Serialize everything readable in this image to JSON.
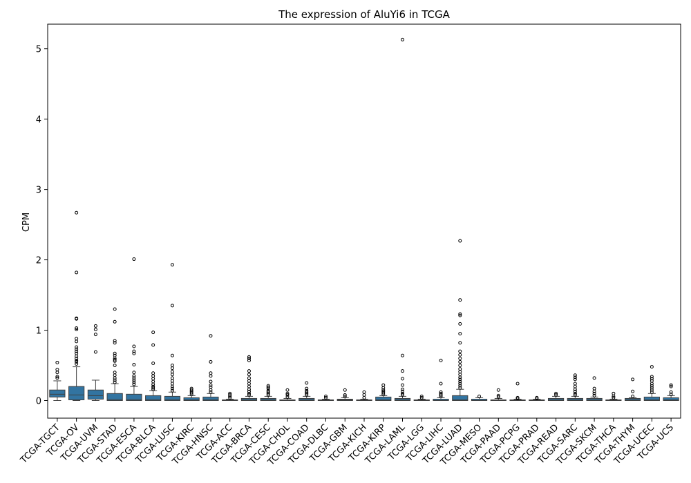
{
  "chart_data": {
    "type": "box",
    "title": "The expression of AluYi6 in TCGA",
    "xlabel": "",
    "ylabel": "CPM",
    "ylim": [
      -0.25,
      5.35
    ],
    "yticks": [
      0,
      1,
      2,
      3,
      4,
      5
    ],
    "box_color": "#3274a1",
    "categories": [
      "TCGA-TGCT",
      "TCGA-OV",
      "TCGA-UVM",
      "TCGA-STAD",
      "TCGA-ESCA",
      "TCGA-BLCA",
      "TCGA-LUSC",
      "TCGA-KIRC",
      "TCGA-HNSC",
      "TCGA-ACC",
      "TCGA-BRCA",
      "TCGA-CESC",
      "TCGA-CHOL",
      "TCGA-COAD",
      "TCGA-DLBC",
      "TCGA-GBM",
      "TCGA-KICH",
      "TCGA-KIRP",
      "TCGA-LAML",
      "TCGA-LGG",
      "TCGA-LIHC",
      "TCGA-LUAD",
      "TCGA-MESO",
      "TCGA-PAAD",
      "TCGA-PCPG",
      "TCGA-PRAD",
      "TCGA-READ",
      "TCGA-SARC",
      "TCGA-SKCM",
      "TCGA-THCA",
      "TCGA-THYM",
      "TCGA-UCEC",
      "TCGA-UCS"
    ],
    "boxes": [
      {
        "min": 0.0,
        "q1": 0.05,
        "median": 0.09,
        "q3": 0.15,
        "max": 0.28,
        "outliers": [
          0.32,
          0.34,
          0.4,
          0.44,
          0.54
        ]
      },
      {
        "min": 0.0,
        "q1": 0.01,
        "median": 0.08,
        "q3": 0.2,
        "max": 0.48,
        "outliers": [
          0.52,
          0.55,
          0.57,
          0.6,
          0.63,
          0.67,
          0.7,
          0.73,
          0.76,
          0.84,
          0.88,
          1.01,
          1.03,
          1.16,
          1.17,
          1.82,
          2.67
        ]
      },
      {
        "min": 0.0,
        "q1": 0.02,
        "median": 0.07,
        "q3": 0.15,
        "max": 0.29,
        "outliers": [
          0.69,
          0.94,
          1.01,
          1.06
        ]
      },
      {
        "min": 0.0,
        "q1": 0.0,
        "median": 0.02,
        "q3": 0.1,
        "max": 0.24,
        "outliers": [
          0.26,
          0.29,
          0.32,
          0.36,
          0.4,
          0.5,
          0.56,
          0.58,
          0.6,
          0.64,
          0.67,
          0.82,
          0.85,
          1.12,
          1.3
        ]
      },
      {
        "min": 0.0,
        "q1": 0.0,
        "median": 0.02,
        "q3": 0.09,
        "max": 0.2,
        "outliers": [
          0.23,
          0.26,
          0.29,
          0.32,
          0.35,
          0.4,
          0.51,
          0.67,
          0.7,
          0.77,
          2.01
        ]
      },
      {
        "min": 0.0,
        "q1": 0.0,
        "median": 0.02,
        "q3": 0.07,
        "max": 0.14,
        "outliers": [
          0.16,
          0.18,
          0.2,
          0.23,
          0.27,
          0.31,
          0.35,
          0.39,
          0.53,
          0.79,
          0.97
        ]
      },
      {
        "min": 0.0,
        "q1": 0.0,
        "median": 0.02,
        "q3": 0.06,
        "max": 0.12,
        "outliers": [
          0.14,
          0.17,
          0.2,
          0.24,
          0.28,
          0.32,
          0.37,
          0.41,
          0.46,
          0.5,
          0.64,
          1.35,
          1.93
        ]
      },
      {
        "min": 0.0,
        "q1": 0.0,
        "median": 0.01,
        "q3": 0.04,
        "max": 0.07,
        "outliers": [
          0.09,
          0.11,
          0.13,
          0.15,
          0.17
        ]
      },
      {
        "min": 0.0,
        "q1": 0.0,
        "median": 0.02,
        "q3": 0.05,
        "max": 0.1,
        "outliers": [
          0.12,
          0.15,
          0.19,
          0.22,
          0.27,
          0.35,
          0.39,
          0.55,
          0.92
        ]
      },
      {
        "min": 0.0,
        "q1": 0.0,
        "median": 0.0,
        "q3": 0.01,
        "max": 0.02,
        "outliers": [
          0.04,
          0.06,
          0.08,
          0.1
        ]
      },
      {
        "min": 0.0,
        "q1": 0.0,
        "median": 0.01,
        "q3": 0.03,
        "max": 0.06,
        "outliers": [
          0.08,
          0.1,
          0.13,
          0.16,
          0.2,
          0.24,
          0.28,
          0.32,
          0.37,
          0.42,
          0.57,
          0.6,
          0.62
        ]
      },
      {
        "min": 0.0,
        "q1": 0.0,
        "median": 0.01,
        "q3": 0.03,
        "max": 0.06,
        "outliers": [
          0.08,
          0.1,
          0.12,
          0.14,
          0.17,
          0.19,
          0.21
        ]
      },
      {
        "min": 0.0,
        "q1": 0.0,
        "median": 0.0,
        "q3": 0.01,
        "max": 0.03,
        "outliers": [
          0.05,
          0.08,
          0.1,
          0.15
        ]
      },
      {
        "min": 0.0,
        "q1": 0.0,
        "median": 0.01,
        "q3": 0.03,
        "max": 0.06,
        "outliers": [
          0.08,
          0.1,
          0.12,
          0.14,
          0.17,
          0.25
        ]
      },
      {
        "min": 0.0,
        "q1": 0.0,
        "median": 0.0,
        "q3": 0.01,
        "max": 0.02,
        "outliers": [
          0.04,
          0.06
        ]
      },
      {
        "min": 0.0,
        "q1": 0.0,
        "median": 0.01,
        "q3": 0.02,
        "max": 0.04,
        "outliers": [
          0.06,
          0.08,
          0.15
        ]
      },
      {
        "min": 0.0,
        "q1": 0.0,
        "median": 0.0,
        "q3": 0.01,
        "max": 0.02,
        "outliers": [
          0.04,
          0.08,
          0.12
        ]
      },
      {
        "min": 0.0,
        "q1": 0.0,
        "median": 0.01,
        "q3": 0.05,
        "max": 0.07,
        "outliers": [
          0.09,
          0.11,
          0.13,
          0.15,
          0.18,
          0.22
        ]
      },
      {
        "min": 0.0,
        "q1": 0.0,
        "median": 0.01,
        "q3": 0.03,
        "max": 0.06,
        "outliers": [
          0.08,
          0.1,
          0.13,
          0.16,
          0.22,
          0.31,
          0.42,
          0.64,
          5.13
        ]
      },
      {
        "min": 0.0,
        "q1": 0.0,
        "median": 0.0,
        "q3": 0.01,
        "max": 0.02,
        "outliers": [
          0.04,
          0.06
        ]
      },
      {
        "min": 0.0,
        "q1": 0.0,
        "median": 0.0,
        "q3": 0.02,
        "max": 0.04,
        "outliers": [
          0.06,
          0.08,
          0.1,
          0.12,
          0.24,
          0.57
        ]
      },
      {
        "min": 0.0,
        "q1": 0.0,
        "median": 0.01,
        "q3": 0.07,
        "max": 0.16,
        "outliers": [
          0.18,
          0.21,
          0.24,
          0.27,
          0.3,
          0.33,
          0.37,
          0.41,
          0.45,
          0.5,
          0.55,
          0.6,
          0.65,
          0.7,
          0.82,
          0.95,
          1.09,
          1.21,
          1.23,
          1.43,
          2.27
        ]
      },
      {
        "min": 0.0,
        "q1": 0.0,
        "median": 0.0,
        "q3": 0.02,
        "max": 0.04,
        "outliers": [
          0.06
        ]
      },
      {
        "min": 0.0,
        "q1": 0.0,
        "median": 0.0,
        "q3": 0.01,
        "max": 0.03,
        "outliers": [
          0.05,
          0.07,
          0.15
        ]
      },
      {
        "min": 0.0,
        "q1": 0.0,
        "median": 0.0,
        "q3": 0.01,
        "max": 0.02,
        "outliers": [
          0.03,
          0.04,
          0.24
        ]
      },
      {
        "min": 0.0,
        "q1": 0.0,
        "median": 0.0,
        "q3": 0.01,
        "max": 0.02,
        "outliers": [
          0.03,
          0.04
        ]
      },
      {
        "min": 0.0,
        "q1": 0.0,
        "median": 0.01,
        "q3": 0.03,
        "max": 0.06,
        "outliers": [
          0.08,
          0.1
        ]
      },
      {
        "min": 0.0,
        "q1": 0.0,
        "median": 0.01,
        "q3": 0.03,
        "max": 0.06,
        "outliers": [
          0.08,
          0.1,
          0.13,
          0.16,
          0.2,
          0.24,
          0.3,
          0.33,
          0.36
        ]
      },
      {
        "min": 0.0,
        "q1": 0.0,
        "median": 0.01,
        "q3": 0.03,
        "max": 0.05,
        "outliers": [
          0.07,
          0.1,
          0.13,
          0.17,
          0.32
        ]
      },
      {
        "min": 0.0,
        "q1": 0.0,
        "median": 0.0,
        "q3": 0.01,
        "max": 0.02,
        "outliers": [
          0.04,
          0.06,
          0.1
        ]
      },
      {
        "min": 0.0,
        "q1": 0.0,
        "median": 0.01,
        "q3": 0.03,
        "max": 0.04,
        "outliers": [
          0.06,
          0.13,
          0.3
        ]
      },
      {
        "min": 0.0,
        "q1": 0.0,
        "median": 0.01,
        "q3": 0.05,
        "max": 0.1,
        "outliers": [
          0.12,
          0.15,
          0.18,
          0.21,
          0.24,
          0.28,
          0.31,
          0.34,
          0.48
        ]
      },
      {
        "min": 0.0,
        "q1": 0.0,
        "median": 0.01,
        "q3": 0.04,
        "max": 0.07,
        "outliers": [
          0.09,
          0.12,
          0.2,
          0.22
        ]
      }
    ]
  }
}
